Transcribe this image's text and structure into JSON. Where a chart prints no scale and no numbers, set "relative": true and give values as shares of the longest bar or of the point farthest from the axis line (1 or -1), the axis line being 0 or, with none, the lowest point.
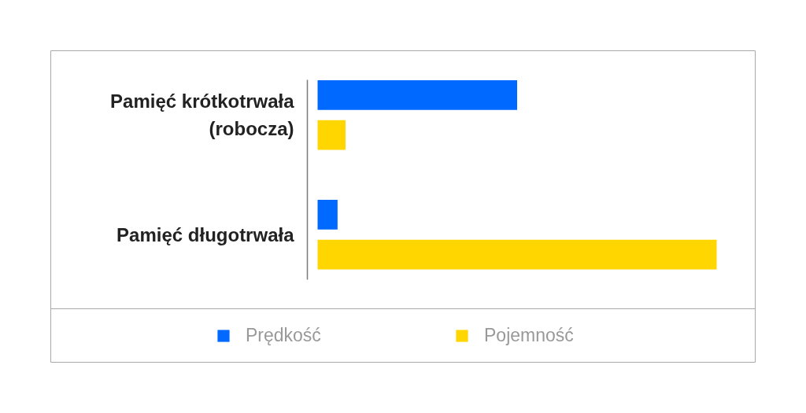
{
  "chart_data": {
    "type": "bar",
    "orientation": "horizontal",
    "relative": true,
    "categories": [
      "Pamięć krótkotrwała (robocza)",
      "Pamięć długotrwała"
    ],
    "series": [
      {
        "name": "Prędkość",
        "color": "#0069ff",
        "values": [
          0.5,
          0.05
        ]
      },
      {
        "name": "Pojemność",
        "color": "#ffd600",
        "values": [
          0.07,
          1
        ]
      }
    ],
    "legend": "bottom"
  }
}
